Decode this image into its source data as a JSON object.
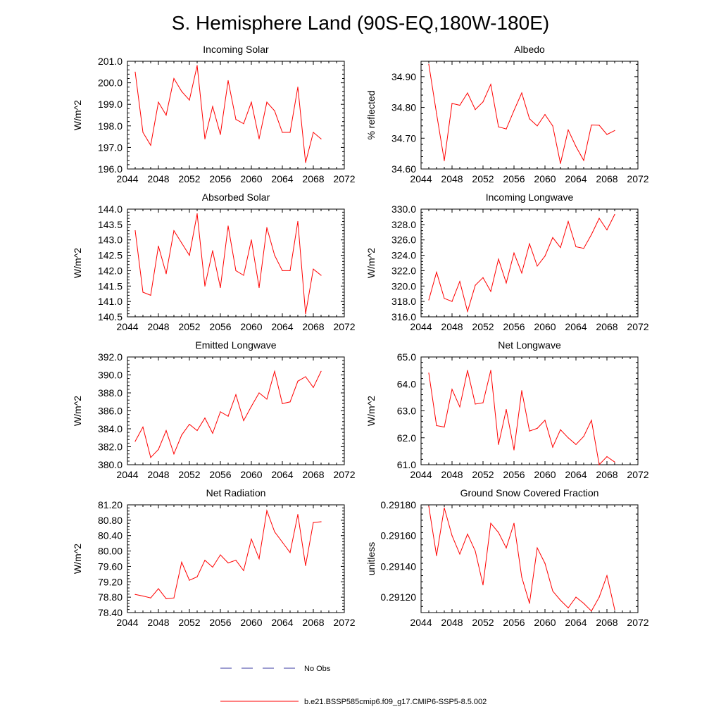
{
  "title": "S. Hemisphere Land (90S-EQ,180W-180E)",
  "legend": {
    "entries": [
      {
        "label": "No Obs",
        "color": "#3a3aa0",
        "style": "dashed"
      },
      {
        "label": "b.e21.BSSP585cmip6.f09_g17.CMIP6-SSP5-8.5.002",
        "color": "#ff0000",
        "style": "solid"
      }
    ]
  },
  "chart_data": [
    {
      "type": "line",
      "title": "Incoming Solar",
      "ylabel": "W/m^2",
      "xlim": [
        2044,
        2072
      ],
      "ylim": [
        196.0,
        201.0
      ],
      "xticks": [
        2044,
        2048,
        2052,
        2056,
        2060,
        2064,
        2068,
        2072
      ],
      "yticks": [
        "196.0",
        "197.0",
        "198.0",
        "199.0",
        "200.0",
        "201.0"
      ],
      "series": [
        {
          "color": "#ff0000",
          "x": [
            2045,
            2046,
            2047,
            2048,
            2049,
            2050,
            2051,
            2052,
            2053,
            2054,
            2055,
            2056,
            2057,
            2058,
            2059,
            2060,
            2061,
            2062,
            2063,
            2064,
            2065,
            2066,
            2067,
            2068,
            2069
          ],
          "values": [
            200.5,
            197.7,
            197.1,
            199.1,
            198.5,
            200.2,
            199.6,
            199.2,
            200.8,
            197.4,
            198.9,
            197.6,
            200.1,
            198.3,
            198.1,
            199.1,
            197.4,
            199.1,
            198.7,
            197.7,
            197.7,
            199.8,
            196.3,
            197.7,
            197.4
          ]
        }
      ]
    },
    {
      "type": "line",
      "title": "Albedo",
      "ylabel": "% reflected",
      "xlim": [
        2044,
        2072
      ],
      "ylim": [
        34.6,
        34.95
      ],
      "xticks": [
        2044,
        2048,
        2052,
        2056,
        2060,
        2064,
        2068,
        2072
      ],
      "yticks": [
        "34.60",
        "34.70",
        "34.80",
        "34.90"
      ],
      "series": [
        {
          "color": "#ff0000",
          "x": [
            2045,
            2046,
            2047,
            2048,
            2049,
            2050,
            2051,
            2052,
            2053,
            2054,
            2055,
            2056,
            2057,
            2058,
            2059,
            2060,
            2061,
            2062,
            2063,
            2064,
            2065,
            2066,
            2067,
            2068,
            2069
          ],
          "values": [
            34.94,
            34.78,
            34.627,
            34.813,
            34.807,
            34.847,
            34.793,
            34.818,
            34.875,
            34.737,
            34.73,
            34.79,
            34.847,
            34.763,
            34.74,
            34.777,
            34.74,
            34.618,
            34.727,
            34.673,
            34.628,
            34.743,
            34.742,
            34.712,
            34.725
          ]
        }
      ]
    },
    {
      "type": "line",
      "title": "Absorbed Solar",
      "ylabel": "W/m^2",
      "xlim": [
        2044,
        2072
      ],
      "ylim": [
        140.5,
        144.0
      ],
      "xticks": [
        2044,
        2048,
        2052,
        2056,
        2060,
        2064,
        2068,
        2072
      ],
      "yticks": [
        "140.5",
        "141.0",
        "141.5",
        "142.0",
        "142.5",
        "143.0",
        "143.5",
        "144.0"
      ],
      "series": [
        {
          "color": "#ff0000",
          "x": [
            2045,
            2046,
            2047,
            2048,
            2049,
            2050,
            2051,
            2052,
            2053,
            2054,
            2055,
            2056,
            2057,
            2058,
            2059,
            2060,
            2061,
            2062,
            2063,
            2064,
            2065,
            2066,
            2067,
            2068,
            2069
          ],
          "values": [
            143.3,
            141.3,
            141.2,
            142.8,
            141.9,
            143.3,
            142.9,
            142.5,
            143.85,
            141.5,
            142.65,
            141.45,
            143.45,
            142.0,
            141.85,
            143.0,
            141.45,
            143.4,
            142.5,
            142.0,
            142.0,
            143.6,
            140.6,
            142.05,
            141.85
          ]
        }
      ]
    },
    {
      "type": "line",
      "title": "Incoming Longwave",
      "ylabel": "W/m^2",
      "xlim": [
        2044,
        2072
      ],
      "ylim": [
        316.0,
        330.0
      ],
      "xticks": [
        2044,
        2048,
        2052,
        2056,
        2060,
        2064,
        2068,
        2072
      ],
      "yticks": [
        "316.0",
        "318.0",
        "320.0",
        "322.0",
        "324.0",
        "326.0",
        "328.0",
        "330.0"
      ],
      "series": [
        {
          "color": "#ff0000",
          "x": [
            2045,
            2046,
            2047,
            2048,
            2049,
            2050,
            2051,
            2052,
            2053,
            2054,
            2055,
            2056,
            2057,
            2058,
            2059,
            2060,
            2061,
            2062,
            2063,
            2064,
            2065,
            2066,
            2067,
            2068,
            2069
          ],
          "values": [
            318.2,
            321.8,
            318.4,
            318.0,
            320.6,
            316.7,
            320.1,
            321.1,
            319.3,
            323.5,
            320.4,
            324.3,
            321.7,
            325.5,
            322.6,
            323.9,
            326.3,
            325.0,
            328.4,
            325.1,
            324.9,
            326.7,
            328.8,
            327.3,
            329.3
          ]
        }
      ]
    },
    {
      "type": "line",
      "title": "Emitted Longwave",
      "ylabel": "W/m^2",
      "xlim": [
        2044,
        2072
      ],
      "ylim": [
        380.0,
        392.0
      ],
      "xticks": [
        2044,
        2048,
        2052,
        2056,
        2060,
        2064,
        2068,
        2072
      ],
      "yticks": [
        "380.0",
        "382.0",
        "384.0",
        "386.0",
        "388.0",
        "390.0",
        "392.0"
      ],
      "series": [
        {
          "color": "#ff0000",
          "x": [
            2045,
            2046,
            2047,
            2048,
            2049,
            2050,
            2051,
            2052,
            2053,
            2054,
            2055,
            2056,
            2057,
            2058,
            2059,
            2060,
            2061,
            2062,
            2063,
            2064,
            2065,
            2066,
            2067,
            2068,
            2069
          ],
          "values": [
            382.6,
            384.2,
            380.8,
            381.7,
            383.8,
            381.2,
            383.3,
            384.5,
            383.8,
            385.2,
            383.5,
            385.9,
            385.4,
            387.8,
            384.9,
            386.5,
            388.0,
            387.3,
            390.4,
            386.8,
            387.0,
            389.3,
            389.8,
            388.6,
            390.4
          ]
        }
      ]
    },
    {
      "type": "line",
      "title": "Net Longwave",
      "ylabel": "W/m^2",
      "xlim": [
        2044,
        2072
      ],
      "ylim": [
        61.0,
        65.0
      ],
      "xticks": [
        2044,
        2048,
        2052,
        2056,
        2060,
        2064,
        2068,
        2072
      ],
      "yticks": [
        "61.0",
        "62.0",
        "63.0",
        "64.0",
        "65.0"
      ],
      "series": [
        {
          "color": "#ff0000",
          "x": [
            2045,
            2046,
            2047,
            2048,
            2049,
            2050,
            2051,
            2052,
            2053,
            2054,
            2055,
            2056,
            2057,
            2058,
            2059,
            2060,
            2061,
            2062,
            2063,
            2064,
            2065,
            2066,
            2067,
            2068,
            2069
          ],
          "values": [
            64.4,
            62.45,
            62.4,
            63.8,
            63.15,
            64.5,
            63.25,
            63.3,
            64.5,
            61.75,
            63.05,
            61.55,
            63.75,
            62.25,
            62.35,
            62.65,
            61.65,
            62.3,
            62.0,
            61.75,
            62.05,
            62.65,
            61.0,
            61.3,
            61.1
          ]
        }
      ]
    },
    {
      "type": "line",
      "title": "Net Radiation",
      "ylabel": "W/m^2",
      "xlim": [
        2044,
        2072
      ],
      "ylim": [
        78.4,
        81.2
      ],
      "xticks": [
        2044,
        2048,
        2052,
        2056,
        2060,
        2064,
        2068,
        2072
      ],
      "yticks": [
        "78.40",
        "78.80",
        "79.20",
        "79.60",
        "80.00",
        "80.40",
        "80.80",
        "81.20"
      ],
      "series": [
        {
          "color": "#ff0000",
          "x": [
            2045,
            2046,
            2047,
            2048,
            2049,
            2050,
            2051,
            2052,
            2053,
            2054,
            2055,
            2056,
            2057,
            2058,
            2059,
            2060,
            2061,
            2062,
            2063,
            2064,
            2065,
            2066,
            2067,
            2068,
            2069
          ],
          "values": [
            78.87,
            78.83,
            78.78,
            79.02,
            78.76,
            78.78,
            79.71,
            79.24,
            79.33,
            79.76,
            79.58,
            79.9,
            79.69,
            79.76,
            79.49,
            80.31,
            79.8,
            81.05,
            80.5,
            80.23,
            79.96,
            80.95,
            79.62,
            80.74,
            80.76
          ]
        }
      ]
    },
    {
      "type": "line",
      "title": "Ground Snow Covered Fraction",
      "ylabel": "unitless",
      "xlim": [
        2044,
        2072
      ],
      "ylim": [
        0.2911,
        0.2918
      ],
      "xticks": [
        2044,
        2048,
        2052,
        2056,
        2060,
        2064,
        2068,
        2072
      ],
      "yticks": [
        "0.29120",
        "0.29140",
        "0.29160",
        "0.29180"
      ],
      "series": [
        {
          "color": "#ff0000",
          "x": [
            2045,
            2046,
            2047,
            2048,
            2049,
            2050,
            2051,
            2052,
            2053,
            2054,
            2055,
            2056,
            2057,
            2058,
            2059,
            2060,
            2061,
            2062,
            2063,
            2064,
            2065,
            2066,
            2067,
            2068,
            2069
          ],
          "values": [
            0.29179,
            0.29147,
            0.29178,
            0.2916,
            0.29148,
            0.29161,
            0.2915,
            0.29128,
            0.29168,
            0.29162,
            0.29152,
            0.29168,
            0.29133,
            0.29116,
            0.29152,
            0.29142,
            0.29124,
            0.29118,
            0.29113,
            0.2912,
            0.29116,
            0.29111,
            0.2912,
            0.29134,
            0.29112
          ]
        }
      ]
    }
  ]
}
